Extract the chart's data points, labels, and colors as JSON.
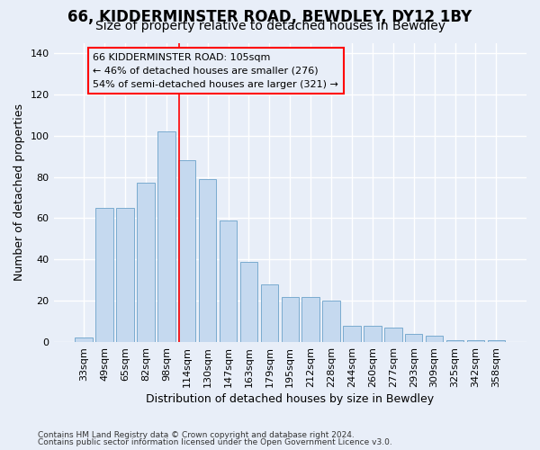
{
  "title": "66, KIDDERMINSTER ROAD, BEWDLEY, DY12 1BY",
  "subtitle": "Size of property relative to detached houses in Bewdley",
  "xlabel": "Distribution of detached houses by size in Bewdley",
  "ylabel": "Number of detached properties",
  "footer1": "Contains HM Land Registry data © Crown copyright and database right 2024.",
  "footer2": "Contains public sector information licensed under the Open Government Licence v3.0.",
  "categories": [
    "33sqm",
    "49sqm",
    "65sqm",
    "82sqm",
    "98sqm",
    "114sqm",
    "130sqm",
    "147sqm",
    "163sqm",
    "179sqm",
    "195sqm",
    "212sqm",
    "228sqm",
    "244sqm",
    "260sqm",
    "277sqm",
    "293sqm",
    "309sqm",
    "325sqm",
    "342sqm",
    "358sqm"
  ],
  "bar_heights": [
    2,
    65,
    65,
    77,
    102,
    88,
    79,
    59,
    39,
    28,
    22,
    22,
    20,
    8,
    8,
    7,
    4,
    3,
    1,
    1,
    1
  ],
  "bar_color": "#c5d9ef",
  "bar_edge_color": "#7aabcf",
  "annotation_line1": "66 KIDDERMINSTER ROAD: 105sqm",
  "annotation_line2": "← 46% of detached houses are smaller (276)",
  "annotation_line3": "54% of semi-detached houses are larger (321) →",
  "red_line_x": 4.62,
  "ylim_max": 145,
  "background_color": "#e8eef8",
  "grid_color": "#ffffff",
  "title_fontsize": 12,
  "subtitle_fontsize": 10,
  "bar_width": 0.85
}
